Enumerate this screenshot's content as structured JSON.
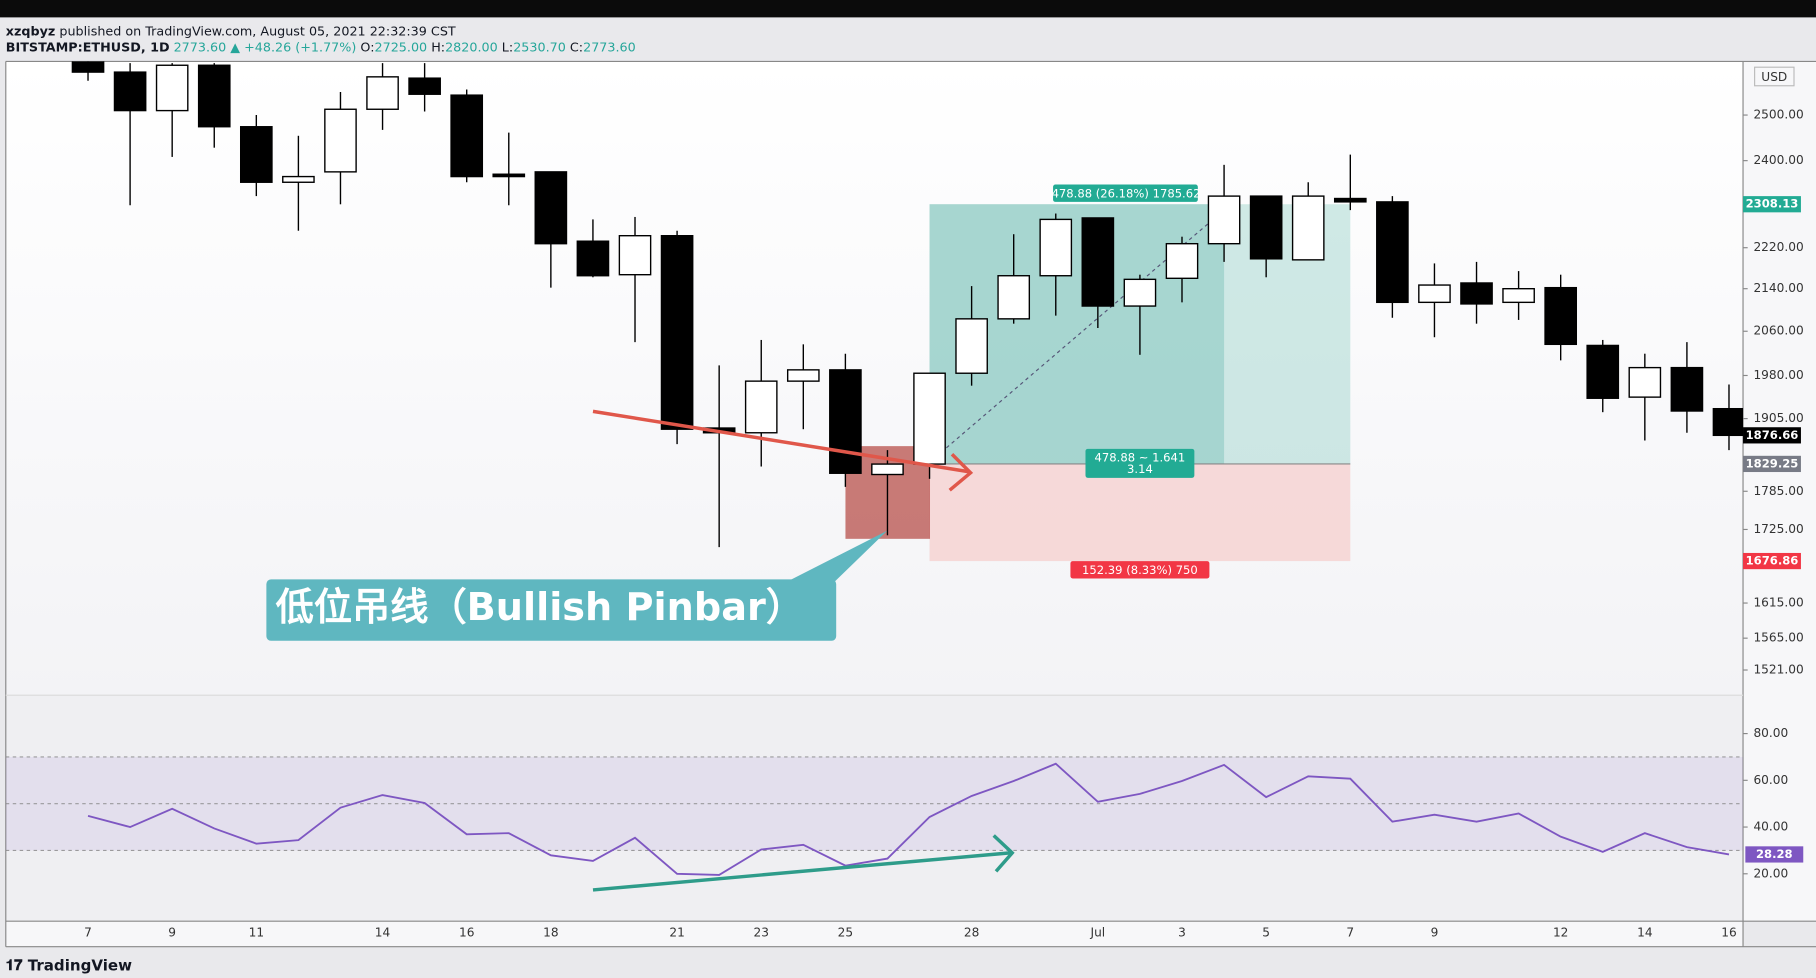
{
  "header": {
    "author": "xzqbyz",
    "published": "published on TradingView.com, August 05, 2021 22:32:39 CST",
    "symbol": "BITSTAMP:ETHUSD, 1D",
    "last": "2773.60",
    "change": "▲ +48.26 (+1.77%)",
    "quote": [
      {
        "label": "O:",
        "value": "2725.00"
      },
      {
        "label": "H:",
        "value": "2820.00"
      },
      {
        "label": "L:",
        "value": "2530.70"
      },
      {
        "label": "C:",
        "value": "2773.60"
      }
    ],
    "currency": "USD"
  },
  "chart_data": [
    {
      "type": "candlestick",
      "up_color": "#ffffff",
      "down_color": "#000000",
      "log_scale": true,
      "grid": false,
      "categories": [
        "7",
        null,
        "9",
        null,
        "11",
        null,
        null,
        "14",
        null,
        "16",
        null,
        "18",
        null,
        null,
        "21",
        null,
        "23",
        null,
        "25",
        null,
        null,
        "28",
        null,
        null,
        "Jul",
        null,
        "3",
        null,
        "5",
        null,
        "7",
        null,
        "9",
        null,
        null,
        "12",
        null,
        "14",
        null,
        "16"
      ],
      "open": [
        2640,
        2598,
        2510,
        2614,
        2474,
        2354,
        2376,
        2513,
        2584,
        2545,
        2371,
        2376,
        2233,
        2167,
        2244,
        1889,
        1881,
        1970,
        1990,
        1812,
        1829,
        1984,
        2083,
        2165,
        2280,
        2107,
        2160,
        2228,
        2325,
        2196,
        2320,
        2313,
        2114,
        2151,
        2114,
        2142,
        2034,
        1942,
        1994,
        1922
      ],
      "high": [
        2660,
        2619,
        2619,
        2619,
        2500,
        2454,
        2552,
        2619,
        2619,
        2558,
        2461,
        2376,
        2277,
        2282,
        2254,
        1998,
        2044,
        2036,
        2019,
        1852,
        1984,
        2145,
        2247,
        2289,
        2280,
        2167,
        2242,
        2391,
        2325,
        2354,
        2413,
        2325,
        2189,
        2192,
        2174,
        2167,
        2044,
        2019,
        2040,
        1964
      ],
      "low": [
        2578,
        2306,
        2408,
        2428,
        2325,
        2254,
        2308,
        2467,
        2508,
        2354,
        2306,
        2142,
        2162,
        2040,
        1862,
        1698,
        1825,
        1887,
        1792,
        1716,
        1805,
        1962,
        2074,
        2089,
        2066,
        2017,
        2114,
        2192,
        2162,
        2196,
        2296,
        2085,
        2049,
        2074,
        2081,
        2007,
        1916,
        1868,
        1881,
        1852
      ],
      "close": [
        2598,
        2510,
        2614,
        2474,
        2354,
        2366,
        2513,
        2587,
        2547,
        2366,
        2366,
        2228,
        2165,
        2244,
        1887,
        1881,
        1970,
        1990,
        1814,
        1829,
        1984,
        2083,
        2165,
        2277,
        2107,
        2158,
        2228,
        2325,
        2198,
        2325,
        2313,
        2114,
        2147,
        2111,
        2140,
        2036,
        1940,
        1994,
        1918,
        1876.66
      ],
      "ylim": [
        1487,
        2623
      ],
      "yticks": [
        {
          "value": 2500,
          "label": "2500.00"
        },
        {
          "value": 2400,
          "label": "2400.00"
        },
        {
          "value": 2220,
          "label": "2220.00"
        },
        {
          "value": 2140,
          "label": "2140.00"
        },
        {
          "value": 2060,
          "label": "2060.00"
        },
        {
          "value": 1980,
          "label": "1980.00"
        },
        {
          "value": 1905,
          "label": "1905.00"
        },
        {
          "value": 1785,
          "label": "1785.00"
        },
        {
          "value": 1725,
          "label": "1725.00"
        },
        {
          "value": 1615,
          "label": "1615.00"
        },
        {
          "value": 1565,
          "label": "1565.00"
        },
        {
          "value": 1521,
          "label": "1521.00"
        }
      ],
      "position": {
        "target": 2308.13,
        "entry": 1829.25,
        "stop": 1676.86,
        "target_label": "478.88 (26.18%) 1785.62",
        "ratio_label": "478.88 ~ 1.641",
        "ratio_value": "3.14",
        "stop_label": "152.39 (8.33%) 750"
      },
      "annotation": "低位吊线（Bullish Pinbar）"
    },
    {
      "type": "line",
      "color": "#7e57c2",
      "grid": false,
      "values": [
        44.8,
        40,
        47.8,
        39.4,
        32.9,
        34.4,
        48.3,
        53.7,
        50.3,
        36.9,
        37.4,
        27.9,
        25.5,
        35.4,
        20,
        19.5,
        30.4,
        32.4,
        23.5,
        26.5,
        44.3,
        53.3,
        59.7,
        67.1,
        50.8,
        54.2,
        59.7,
        66.6,
        52.8,
        61.7,
        60.7,
        42.3,
        45.3,
        42.3,
        45.8,
        35.9,
        29.4,
        37.4,
        31.4,
        28.28
      ],
      "ylim": [
        -0.3,
        96.4
      ],
      "yticks": [
        {
          "value": 80,
          "label": "80.00"
        },
        {
          "value": 60,
          "label": "60.00"
        },
        {
          "value": 40,
          "label": "40.00"
        },
        {
          "value": 20,
          "label": "20.00"
        }
      ],
      "band_lines": [
        70,
        50,
        30
      ]
    }
  ],
  "footer": {
    "brand": "TradingView"
  }
}
